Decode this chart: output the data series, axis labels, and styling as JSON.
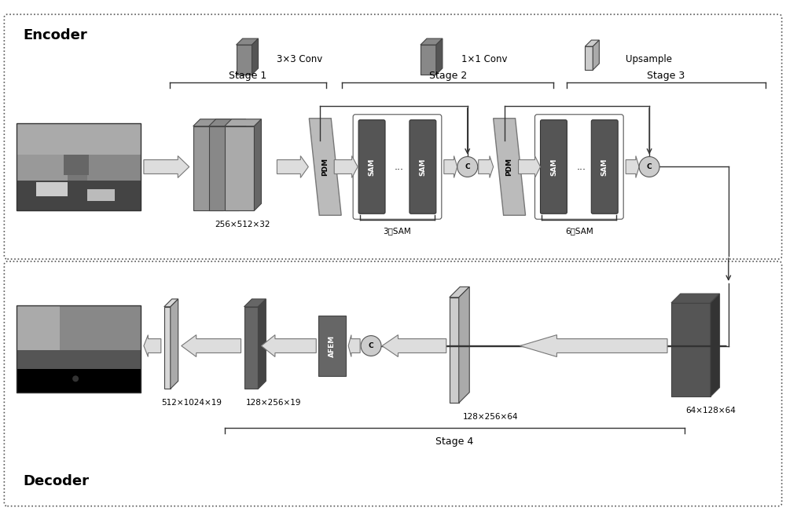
{
  "bg_color": "#ffffff",
  "encoder_label": "Encoder",
  "decoder_label": "Decoder",
  "stage1_label": "Stage 1",
  "stage2_label": "Stage 2",
  "stage3_label": "Stage 3",
  "stage4_label": "Stage 4",
  "legend_33conv": "3×3 Conv",
  "legend_11conv": "1×1 Conv",
  "legend_upsample": "Upsample",
  "dim_stage1": "256×512×32",
  "dim_stage4a": "64×128×64",
  "dim_stage4b": "128×256×64",
  "dim_decoder1": "128×256×19",
  "dim_decoder2": "512×1024×19",
  "sam3": "3个SAM",
  "sam6": "6个SAM"
}
